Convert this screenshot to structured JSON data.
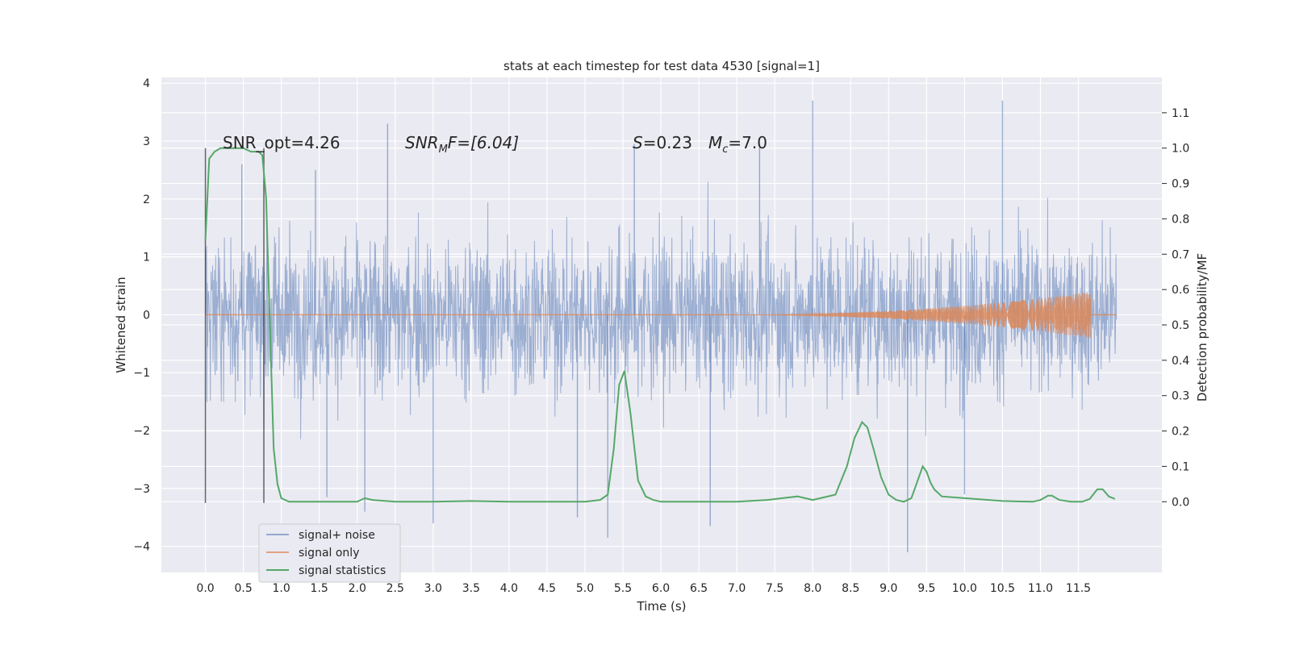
{
  "chart_data": {
    "type": "line",
    "title": "stats at each timestep for test data 4530 [signal=1]",
    "xlabel": "Time (s)",
    "ylabel": "Whitened strain",
    "ylabel_right": "Detection probability/MF",
    "xlim": [
      -0.58,
      12.6
    ],
    "ylim": [
      -4.45,
      4.1
    ],
    "ylim_right": [
      -0.2,
      1.2
    ],
    "x_ticks": [
      "0.0",
      "0.5",
      "1.0",
      "1.5",
      "2.0",
      "2.5",
      "3.0",
      "3.5",
      "4.0",
      "4.5",
      "5.0",
      "5.5",
      "6.0",
      "6.5",
      "7.0",
      "7.5",
      "8.0",
      "8.5",
      "9.0",
      "9.5",
      "10.0",
      "10.5",
      "11.0",
      "11.5"
    ],
    "y_ticks": [
      "−4",
      "−3",
      "−2",
      "−1",
      "0",
      "1",
      "2",
      "3",
      "4"
    ],
    "y_ticks_right": [
      "0.0",
      "0.1",
      "0.2",
      "0.3",
      "0.4",
      "0.5",
      "0.6",
      "0.7",
      "0.8",
      "0.9",
      "1.0",
      "1.1"
    ],
    "grid": true,
    "legend_position": "lower-left",
    "annotations": {
      "snr_opt": "SNR_opt=4.26",
      "snr_mf_prefix": "SNR",
      "snr_mf_sub": "M",
      "snr_mf_suffix": "F=[6.04]",
      "s_label": "S",
      "s_value": "=0.23",
      "mc_label": "M",
      "mc_sub": "c",
      "mc_value": "=7.0"
    },
    "markers": [
      0.0,
      0.77
    ],
    "series": [
      {
        "name": "signal+ noise",
        "color": "#4c72b0",
        "x_range": [
          0.0,
          12.0
        ],
        "envelope_y": [
          -2.3,
          2.3
        ],
        "spikes": [
          {
            "x": 0.48,
            "y": 2.6
          },
          {
            "x": 1.45,
            "y": 2.5
          },
          {
            "x": 2.4,
            "y": 3.3
          },
          {
            "x": 3.0,
            "y": -3.6
          },
          {
            "x": 2.1,
            "y": -3.4
          },
          {
            "x": 4.9,
            "y": -3.5
          },
          {
            "x": 5.3,
            "y": -3.85
          },
          {
            "x": 6.65,
            "y": -3.65
          },
          {
            "x": 8.0,
            "y": 3.7
          },
          {
            "x": 9.25,
            "y": -4.1
          },
          {
            "x": 10.5,
            "y": 3.7
          },
          {
            "x": 10.0,
            "y": -3.1
          },
          {
            "x": 1.6,
            "y": -3.15
          },
          {
            "x": 5.65,
            "y": 2.95
          },
          {
            "x": 7.3,
            "y": 2.9
          }
        ]
      },
      {
        "name": "signal only",
        "color": "#dd8452",
        "chirp_start": 7.0,
        "chirp_end": 11.66,
        "chirp_peak_amplitude": 0.4
      },
      {
        "name": "signal statistics",
        "color": "#55a868",
        "axis": "right",
        "x": [
          0.0,
          0.05,
          0.12,
          0.2,
          0.3,
          0.4,
          0.5,
          0.6,
          0.7,
          0.75,
          0.8,
          0.85,
          0.9,
          0.95,
          1.0,
          1.1,
          1.5,
          2.0,
          2.1,
          2.2,
          2.5,
          3.0,
          3.5,
          4.0,
          4.5,
          5.0,
          5.2,
          5.3,
          5.38,
          5.45,
          5.52,
          5.6,
          5.7,
          5.8,
          5.9,
          6.0,
          6.5,
          7.0,
          7.4,
          7.6,
          7.8,
          8.0,
          8.3,
          8.45,
          8.55,
          8.65,
          8.72,
          8.8,
          8.9,
          9.0,
          9.1,
          9.2,
          9.3,
          9.4,
          9.45,
          9.5,
          9.55,
          9.6,
          9.7,
          10.0,
          10.5,
          10.9,
          11.0,
          11.1,
          11.15,
          11.25,
          11.4,
          11.55,
          11.65,
          11.75,
          11.82,
          11.9,
          11.98
        ],
        "y": [
          0.74,
          0.97,
          0.99,
          1.0,
          1.0,
          1.0,
          1.0,
          0.99,
          0.99,
          0.98,
          0.86,
          0.5,
          0.15,
          0.05,
          0.01,
          0.0,
          0.0,
          0.0,
          0.01,
          0.005,
          0.0,
          0.0,
          0.002,
          0.0,
          0.0,
          0.0,
          0.005,
          0.02,
          0.15,
          0.33,
          0.37,
          0.25,
          0.06,
          0.015,
          0.005,
          0.0,
          0.0,
          0.0,
          0.005,
          0.01,
          0.015,
          0.005,
          0.02,
          0.1,
          0.18,
          0.225,
          0.21,
          0.15,
          0.07,
          0.02,
          0.005,
          0.0,
          0.01,
          0.07,
          0.1,
          0.085,
          0.055,
          0.035,
          0.015,
          0.01,
          0.002,
          0.0,
          0.005,
          0.017,
          0.017,
          0.005,
          0.0,
          0.0,
          0.008,
          0.035,
          0.035,
          0.015,
          0.008
        ]
      }
    ]
  }
}
